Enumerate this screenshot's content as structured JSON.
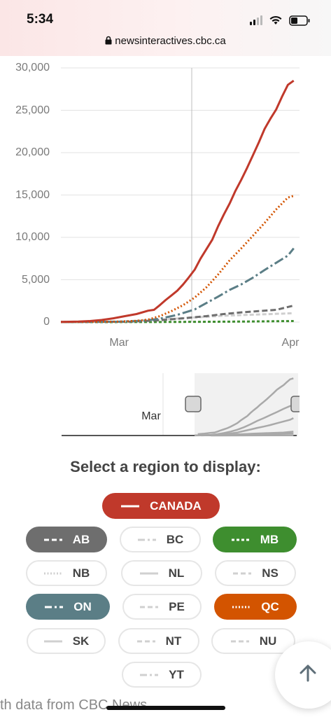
{
  "status_bar": {
    "time": "5:34",
    "url": "newsinteractives.cbc.ca"
  },
  "chart_data": {
    "type": "line",
    "title": "",
    "xlabel": "",
    "ylabel": "",
    "ylim": [
      0,
      30000
    ],
    "yticks": [
      "30,000",
      "25,000",
      "20,000",
      "15,000",
      "10,000",
      "5,000",
      "0"
    ],
    "xticks": [
      {
        "label": "Mar",
        "day": 10
      },
      {
        "label": "Apr",
        "day": 41
      }
    ],
    "xrange_days": [
      0,
      41
    ],
    "grid": true,
    "series": [
      {
        "name": "CANADA",
        "color": "#c0392b",
        "dash": "",
        "points": [
          [
            0,
            20
          ],
          [
            3,
            60
          ],
          [
            5,
            120
          ],
          [
            7,
            250
          ],
          [
            9,
            450
          ],
          [
            11,
            700
          ],
          [
            13,
            950
          ],
          [
            15,
            1350
          ],
          [
            16,
            1450
          ],
          [
            17,
            2000
          ],
          [
            18,
            2600
          ],
          [
            19,
            3150
          ],
          [
            20,
            3700
          ],
          [
            21,
            4450
          ],
          [
            22,
            5300
          ],
          [
            23,
            6200
          ],
          [
            24,
            7500
          ],
          [
            25,
            8600
          ],
          [
            26,
            9700
          ],
          [
            27,
            11300
          ],
          [
            28,
            12700
          ],
          [
            29,
            14000
          ],
          [
            30,
            15500
          ],
          [
            31,
            16800
          ],
          [
            32,
            18200
          ],
          [
            33,
            19700
          ],
          [
            34,
            21200
          ],
          [
            35,
            22800
          ],
          [
            36,
            24000
          ],
          [
            37,
            25100
          ],
          [
            38,
            26600
          ],
          [
            39,
            28000
          ],
          [
            40,
            28500
          ]
        ]
      },
      {
        "name": "QC",
        "color": "#d35400",
        "dash": "2,3",
        "points": [
          [
            0,
            5
          ],
          [
            6,
            30
          ],
          [
            10,
            60
          ],
          [
            13,
            150
          ],
          [
            15,
            300
          ],
          [
            17,
            700
          ],
          [
            19,
            1300
          ],
          [
            21,
            2000
          ],
          [
            23,
            2900
          ],
          [
            25,
            4100
          ],
          [
            27,
            5600
          ],
          [
            29,
            7300
          ],
          [
            31,
            8700
          ],
          [
            33,
            10200
          ],
          [
            35,
            11700
          ],
          [
            37,
            13300
          ],
          [
            39,
            14700
          ],
          [
            40,
            14900
          ]
        ]
      },
      {
        "name": "ON",
        "color": "#5b7e86",
        "dash": "14,4,3,4",
        "points": [
          [
            0,
            10
          ],
          [
            10,
            40
          ],
          [
            14,
            150
          ],
          [
            17,
            400
          ],
          [
            20,
            850
          ],
          [
            23,
            1500
          ],
          [
            25,
            2250
          ],
          [
            27,
            3000
          ],
          [
            29,
            3800
          ],
          [
            31,
            4450
          ],
          [
            33,
            5250
          ],
          [
            35,
            6150
          ],
          [
            37,
            7000
          ],
          [
            39,
            7850
          ],
          [
            40,
            8700
          ]
        ]
      },
      {
        "name": "AB",
        "color": "#6e6e6e",
        "dash": "8,4",
        "points": [
          [
            0,
            5
          ],
          [
            12,
            50
          ],
          [
            17,
            220
          ],
          [
            21,
            450
          ],
          [
            25,
            700
          ],
          [
            28,
            950
          ],
          [
            31,
            1150
          ],
          [
            34,
            1300
          ],
          [
            37,
            1450
          ],
          [
            40,
            1950
          ]
        ]
      },
      {
        "name": "BC",
        "color": "#cfcfcf",
        "dash": "6,3",
        "points": [
          [
            0,
            5
          ],
          [
            10,
            60
          ],
          [
            16,
            250
          ],
          [
            22,
            500
          ],
          [
            28,
            750
          ],
          [
            34,
            900
          ],
          [
            40,
            1050
          ]
        ]
      },
      {
        "name": "MB",
        "color": "#3e8e2f",
        "dash": "4,3",
        "points": [
          [
            0,
            0
          ],
          [
            15,
            10
          ],
          [
            24,
            30
          ],
          [
            32,
            70
          ],
          [
            40,
            120
          ]
        ]
      }
    ]
  },
  "range_slider": {
    "label": "Mar"
  },
  "region_selector": {
    "title": "Select a region to display:",
    "buttons": [
      {
        "label": "CANADA",
        "active": true,
        "color": "#c0392b",
        "dash": "solid"
      },
      {
        "label": "AB",
        "active": true,
        "color": "#6e6e6e",
        "dash": "dashed"
      },
      {
        "label": "BC",
        "active": false,
        "color": "#d0d0d0",
        "dash": "dashdot"
      },
      {
        "label": "MB",
        "active": true,
        "color": "#3e8e2f",
        "dash": "short"
      },
      {
        "label": "NB",
        "active": false,
        "color": "#d0d0d0",
        "dash": "dotted"
      },
      {
        "label": "NL",
        "active": false,
        "color": "#d0d0d0",
        "dash": "solid"
      },
      {
        "label": "NS",
        "active": false,
        "color": "#d0d0d0",
        "dash": "dashed"
      },
      {
        "label": "ON",
        "active": true,
        "color": "#5b7e86",
        "dash": "dashdot"
      },
      {
        "label": "PE",
        "active": false,
        "color": "#d0d0d0",
        "dash": "dashed"
      },
      {
        "label": "QC",
        "active": true,
        "color": "#d35400",
        "dash": "dotted"
      },
      {
        "label": "SK",
        "active": false,
        "color": "#d0d0d0",
        "dash": "solid"
      },
      {
        "label": "NT",
        "active": false,
        "color": "#d0d0d0",
        "dash": "dashed"
      },
      {
        "label": "NU",
        "active": false,
        "color": "#d0d0d0",
        "dash": "dashed"
      },
      {
        "label": "YT",
        "active": false,
        "color": "#d0d0d0",
        "dash": "dashdot"
      }
    ]
  },
  "footer": {
    "text": "th data from CBC News"
  },
  "icons": {
    "scroll_top": "arrow-up-icon",
    "lock": "lock-icon"
  }
}
